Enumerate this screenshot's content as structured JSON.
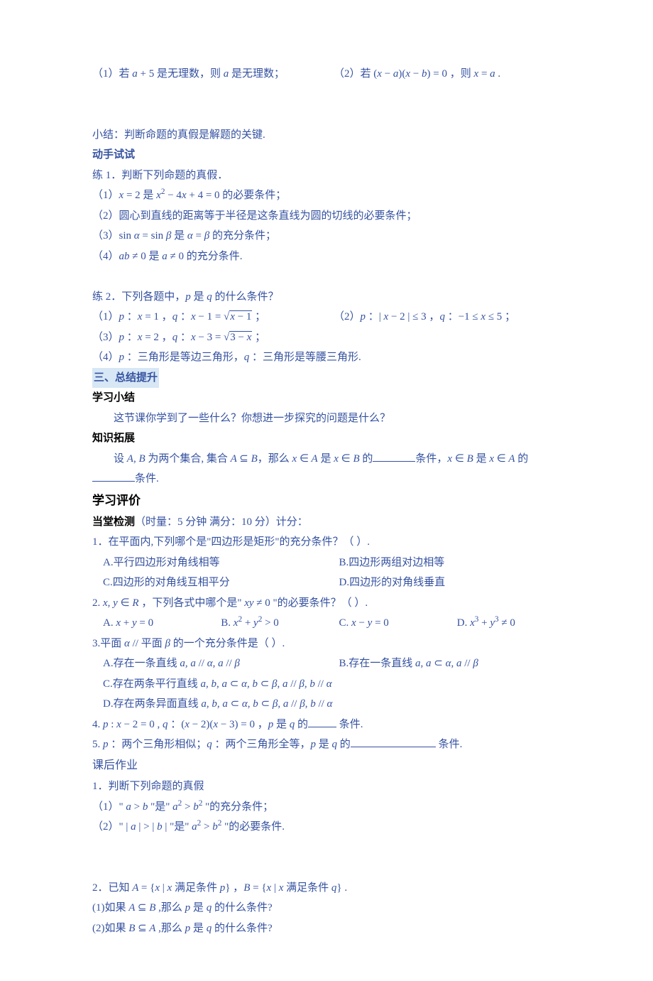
{
  "colors": {
    "text": "#3552a0",
    "black": "#000000",
    "highlight_bg": "#d7e7f5",
    "background": "#ffffff"
  },
  "typography": {
    "body_font": "SimSun",
    "math_font": "Times New Roman",
    "body_size_pt": 11,
    "line_height": 1.9
  },
  "top": {
    "line1_left_a": "（1）若 ",
    "line1_left_math": "a + 5",
    "line1_left_b": " 是无理数，则 ",
    "line1_left_math2": "a",
    "line1_left_c": " 是无理数；",
    "line1_right_a": "（2）若 ",
    "line1_right_math": "(x − a)(x − b) = 0",
    "line1_right_b": " ，则 ",
    "line1_right_math2": "x = a",
    "line1_right_c": " ."
  },
  "xiaojie": {
    "label": "小结：",
    "text": "判断命题的真假是解题的关键."
  },
  "dongshou": {
    "title": "动手试试"
  },
  "lian1": {
    "title": "练 1．判断下列命题的真假．",
    "i1a": "（1）",
    "i1m1": "x = 2",
    "i1b": " 是 ",
    "i1m2": "x² − 4x + 4 = 0",
    "i1c": " 的必要条件；",
    "i2": "（2）圆心到直线的距离等于半径是这条直线为圆的切线的必要条件；",
    "i3a": "（3）",
    "i3m1": "sin α = sin β",
    "i3b": " 是 ",
    "i3m2": "α = β",
    "i3c": " 的充分条件；",
    "i4a": "（4）",
    "i4m1": "ab ≠ 0",
    "i4b": " 是 ",
    "i4m2": "a ≠ 0",
    "i4c": " 的充分条件."
  },
  "lian2": {
    "title_a": "练 2．下列各题中，",
    "title_m1": "p",
    "title_b": " 是 ",
    "title_m2": "q",
    "title_c": " 的什么条件？",
    "i1": "（1）p ：x = 1 ，q ：x − 1 = √(x−1) ；",
    "i2": "（2）p ：| x − 2 | ≤ 3 ，q ：−1 ≤ x ≤ 5 ；",
    "i3": "（3）p ：x = 2 ，q ：x − 3 = √(3−x) ；",
    "i4a": "（4）",
    "i4m1": "p",
    "i4b": " ：三角形是等边三角形，",
    "i4m2": "q",
    "i4c": " ：三角形是等腰三角形."
  },
  "san": {
    "title": "三、总结提升"
  },
  "xuexixiaojie": {
    "title": "学习小结",
    "text": "这节课你学到了一些什么？你想进一步探究的问题是什么？"
  },
  "zhishi": {
    "title": "知识拓展",
    "t1": "设 ",
    "m1": "A, B",
    "t2": " 为两个集合, 集合 ",
    "m2": "A ⊆ B",
    "t3": "，那么 ",
    "m3": "x ∈ A",
    "t4": " 是 ",
    "m4": "x ∈ B",
    "t5": " 的",
    "t6": "条件，",
    "m5": "x ∈ B",
    "t7": " 是 ",
    "m6": "x ∈ A",
    "t8": " 的",
    "line2": "条件."
  },
  "pingjia": {
    "title": "学习评价"
  },
  "dangtang": {
    "label": "当堂检测",
    "tail": "（时量：5 分钟  满分：10 分）计分："
  },
  "q1": {
    "stem": "1．在平面内,下列哪个是\"四边形是矩形\"的充分条件？（     ）.",
    "A": "A.平行四边形对角线相等",
    "B": "B.四边形两组对边相等",
    "C": "C.四边形的对角线互相平分",
    "D": "D.四边形的对角线垂直"
  },
  "q2": {
    "stem_a": "2. ",
    "stem_m1": "x, y ∈ R",
    "stem_b": " ，下列各式中哪个是\" ",
    "stem_m2": "xy ≠ 0",
    "stem_c": " \"的必要条件？（     ）.",
    "A": "A. x + y = 0",
    "B": "B. x² + y² > 0",
    "C": "C. x − y = 0",
    "D": "D. x³ + y³ ≠ 0"
  },
  "q3": {
    "stem_a": "3.平面 ",
    "stem_m1": "α",
    "stem_b": " // 平面 ",
    "stem_m2": "β",
    "stem_c": " 的一个充分条件是（     ）.",
    "A": "A.存在一条直线 a, a // α, a // β",
    "B": "B.存在一条直线 a, a ⊂ α, a // β",
    "C": "C.存在两条平行直线 a, b, a ⊂ α, b ⊂ β, a // β, b // α",
    "D": "D.存在两条异面直线 a, b, a ⊂ α, b ⊂ β, a // β, b // α"
  },
  "q4": {
    "a": "4. ",
    "m1": "p : x − 2 = 0",
    "b": " , ",
    "m2": "q",
    "c": " ：",
    "m3": "(x − 2)(x − 3) = 0",
    "d": " ，",
    "m4": "p",
    "e": " 是 ",
    "m5": "q",
    "f": " 的",
    "g": " 条件."
  },
  "q5": {
    "a": "5. ",
    "m1": "p",
    "b": " ：两个三角形相似；",
    "m2": "q",
    "c": " ：两个三角形全等，",
    "m3": "p",
    "d": "  是 ",
    "m4": "q",
    "e": " 的",
    "f": "  条件."
  },
  "kehou": {
    "title": "课后作业"
  },
  "h1": {
    "title": "1．判断下列命题的真假",
    "i1a": "（1）\" ",
    "i1m1": "a > b",
    "i1b": " \"是\" ",
    "i1m2": "a² > b²",
    "i1c": " \"的充分条件；",
    "i2a": "（2）\" ",
    "i2m1": "| a | > | b |",
    "i2b": " \"是\" ",
    "i2m2": "a² > b²",
    "i2c": " \"的必要条件."
  },
  "h2": {
    "t1": "2．已知 ",
    "m1": "A = {x | x 满足条件 p}",
    "t2": " ，",
    "m2": "B = {x | x 满足条件 q}",
    "t3": " .",
    "s1a": "(1)如果 ",
    "s1m": "A ⊆ B",
    "s1b": " ,那么 ",
    "s1m2": "p",
    "s1c": " 是 ",
    "s1m3": "q",
    "s1d": " 的什么条件?",
    "s2a": "(2)如果 ",
    "s2m": "B ⊆ A",
    "s2b": " ,那么 ",
    "s2m2": "p",
    "s2c": " 是 ",
    "s2m3": "q",
    "s2d": " 的什么条件?"
  }
}
